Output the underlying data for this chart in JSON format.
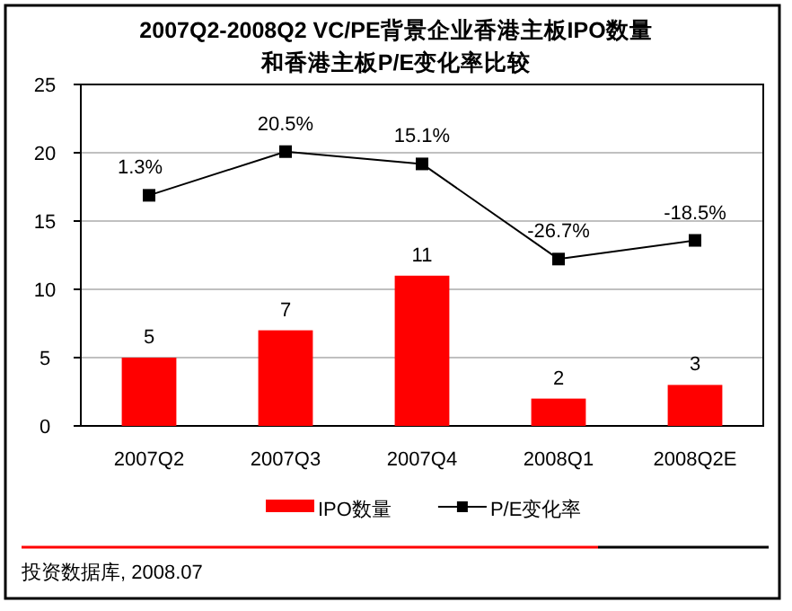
{
  "chart_data": {
    "type": "bar",
    "title": "2007Q2-2008Q2  VC/PE背景企业香港主板IPO数量",
    "subtitle": "和香港主板P/E变化率比较",
    "categories": [
      "2007Q2",
      "2007Q3",
      "2007Q4",
      "2008Q1",
      "2008Q2E"
    ],
    "series": [
      {
        "name": "IPO数量",
        "color": "#ff0000",
        "values": [
          5,
          7,
          11,
          2,
          3
        ],
        "value_labels": [
          "5",
          "7",
          "11",
          "2",
          "3"
        ]
      },
      {
        "name": "P/E变化率",
        "type": "line",
        "axis": "y2",
        "color": "#000000",
        "marker": "square",
        "values": [
          1.3,
          20.5,
          15.1,
          -26.7,
          -18.5
        ],
        "value_labels": [
          "1.3%",
          "20.5%",
          "15.1%",
          "-26.7%",
          "-18.5%"
        ]
      }
    ],
    "ylim": [
      0,
      25
    ],
    "yticks": [
      0,
      5,
      10,
      15,
      20,
      25
    ],
    "y2lim": [
      -100,
      50
    ],
    "tick_labels": "y",
    "grid": "y",
    "legend": "bottom",
    "annotations": [
      "投资数据库, 2008.07"
    ]
  }
}
